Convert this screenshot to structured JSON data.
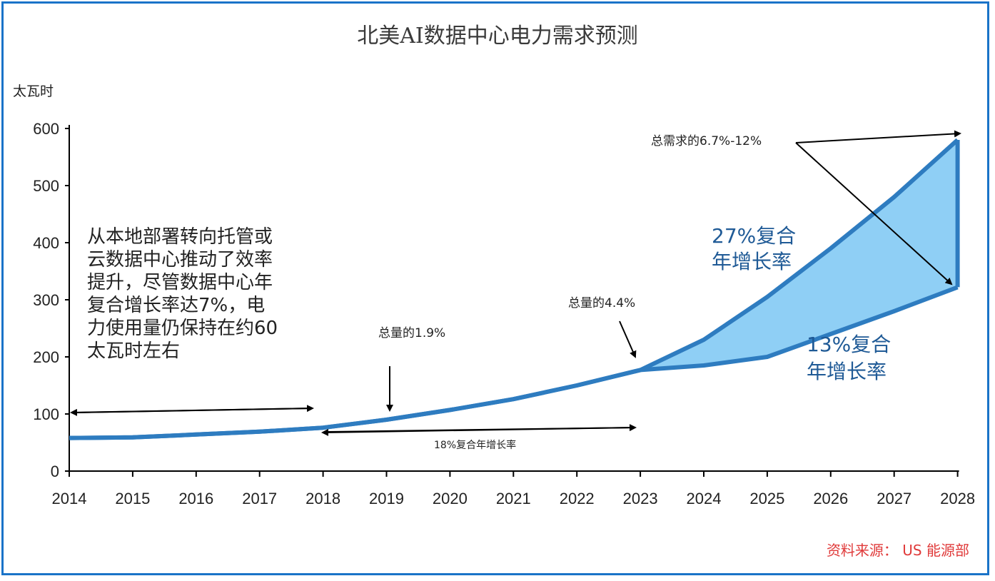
{
  "colors": {
    "frame": "#1a73c8",
    "line": "#2e7cc0",
    "fill": "#8fcff5",
    "source": "#e03a3a",
    "cagr": "#1f5a96"
  },
  "chart_data": {
    "type": "line",
    "title": "北美AI数据中心电力需求预测",
    "ylabel": "太瓦时",
    "ylim": [
      0,
      600
    ],
    "yticks": [
      "0",
      "100",
      "200",
      "300",
      "400",
      "500",
      "600"
    ],
    "categories": [
      "2014",
      "2015",
      "2016",
      "2017",
      "2018",
      "2019",
      "2020",
      "2021",
      "2022",
      "2023",
      "2024",
      "2025",
      "2026",
      "2027",
      "2028"
    ],
    "series": [
      {
        "values": [
          58,
          59,
          64,
          69,
          76,
          90,
          107,
          126,
          150,
          177,
          230,
          305,
          390,
          480,
          580
        ]
      },
      {
        "values": [
          58,
          59,
          64,
          69,
          76,
          90,
          107,
          126,
          150,
          177,
          185,
          200,
          240,
          280,
          322
        ]
      }
    ],
    "annotations": {
      "left_note": [
        "从本地部署转向托管或",
        "云数据中心推动了效率",
        "提升，尽管数据中心年",
        "复合增长率达7%，电",
        "力使用量仍保持在约60",
        "太瓦时左右"
      ],
      "share_2019": "总量的1.9%",
      "share_2023": "总量的4.4%",
      "share_2028": "总需求的6.7%-12%",
      "cagr_mid": "18%复合年增长率",
      "cagr_high": [
        "27%复合",
        "年增长率"
      ],
      "cagr_low": [
        "13%复合",
        "年增长率"
      ]
    },
    "source": "资料来源：  US 能源部"
  }
}
